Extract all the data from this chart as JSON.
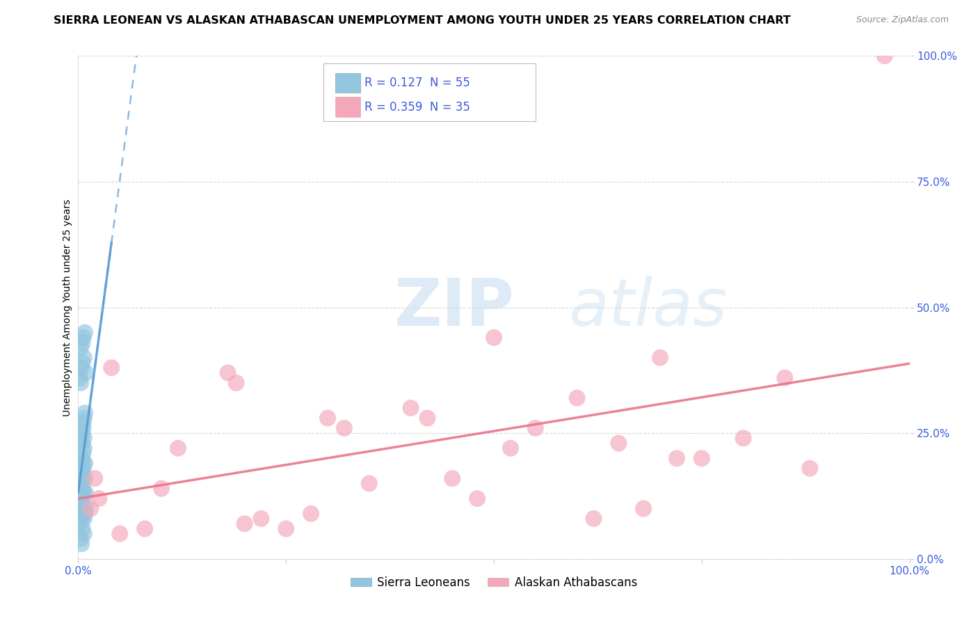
{
  "title": "SIERRA LEONEAN VS ALASKAN ATHABASCAN UNEMPLOYMENT AMONG YOUTH UNDER 25 YEARS CORRELATION CHART",
  "source": "Source: ZipAtlas.com",
  "ylabel": "Unemployment Among Youth under 25 years",
  "color_blue": "#92C5DE",
  "color_pink": "#F4A7B9",
  "color_blue_line": "#5B9BD5",
  "color_pink_line": "#E8748A",
  "color_R_N": "#3B5BDB",
  "background": "#FFFFFF",
  "legend_R1": "R = 0.127",
  "legend_N1": "N = 55",
  "legend_R2": "R = 0.359",
  "legend_N2": "N = 35",
  "legend_label1": "Sierra Leoneans",
  "legend_label2": "Alaskan Athabascans",
  "watermark_zip": "ZIP",
  "watermark_atlas": "atlas",
  "grid_color": "#CCCCCC",
  "tick_color": "#3B5BDB",
  "sierra_x": [
    0.005,
    0.008,
    0.003,
    0.006,
    0.004,
    0.002,
    0.007,
    0.005,
    0.009,
    0.003,
    0.004,
    0.006,
    0.007,
    0.005,
    0.003,
    0.004,
    0.006,
    0.007,
    0.002,
    0.005,
    0.006,
    0.003,
    0.005,
    0.002,
    0.006,
    0.007,
    0.008,
    0.005,
    0.001,
    0.006,
    0.008,
    0.002,
    0.009,
    0.003,
    0.004,
    0.002,
    0.005,
    0.007,
    0.001,
    0.005,
    0.007,
    0.003,
    0.004,
    0.006,
    0.002,
    0.004,
    0.008,
    0.001,
    0.006,
    0.005,
    0.003,
    0.002,
    0.009,
    0.008,
    0.004
  ],
  "sierra_y": [
    0.43,
    0.45,
    0.42,
    0.44,
    0.38,
    0.36,
    0.4,
    0.39,
    0.37,
    0.35,
    0.2,
    0.18,
    0.22,
    0.17,
    0.15,
    0.14,
    0.13,
    0.24,
    0.12,
    0.25,
    0.21,
    0.11,
    0.23,
    0.1,
    0.26,
    0.28,
    0.19,
    0.16,
    0.09,
    0.27,
    0.29,
    0.14,
    0.13,
    0.12,
    0.11,
    0.1,
    0.09,
    0.08,
    0.07,
    0.06,
    0.05,
    0.04,
    0.03,
    0.19,
    0.18,
    0.17,
    0.16,
    0.15,
    0.14,
    0.13,
    0.12,
    0.11,
    0.1,
    0.09,
    0.08
  ],
  "alaska_x": [
    0.02,
    0.04,
    0.015,
    0.025,
    0.18,
    0.19,
    0.2,
    0.5,
    0.52,
    0.7,
    0.72,
    0.85,
    0.88,
    0.3,
    0.32,
    0.1,
    0.12,
    0.4,
    0.42,
    0.6,
    0.62,
    0.8,
    0.55,
    0.65,
    0.75,
    0.97,
    0.35,
    0.45,
    0.05,
    0.08,
    0.22,
    0.25,
    0.28,
    0.48,
    0.68
  ],
  "alaska_y": [
    0.16,
    0.38,
    0.1,
    0.12,
    0.37,
    0.35,
    0.07,
    0.44,
    0.22,
    0.4,
    0.2,
    0.36,
    0.18,
    0.28,
    0.26,
    0.14,
    0.22,
    0.3,
    0.28,
    0.32,
    0.08,
    0.24,
    0.26,
    0.23,
    0.2,
    1.0,
    0.15,
    0.16,
    0.05,
    0.06,
    0.08,
    0.06,
    0.09,
    0.12,
    0.1
  ],
  "xlim": [
    0.0,
    1.0
  ],
  "ylim": [
    0.0,
    1.0
  ],
  "title_fontsize": 11.5,
  "axis_fontsize": 10,
  "tick_fontsize": 11
}
